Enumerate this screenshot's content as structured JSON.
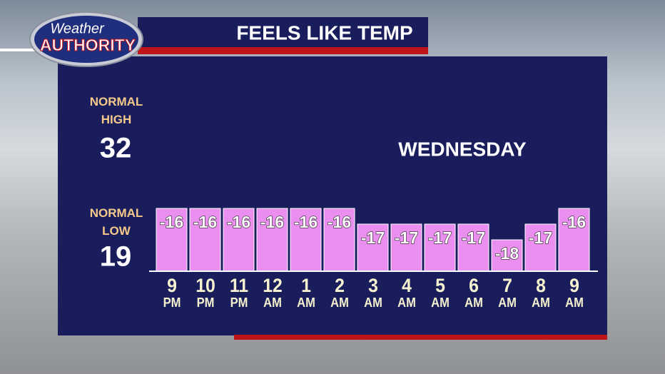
{
  "chart_data": {
    "type": "bar",
    "title": "FEELS LIKE TEMP",
    "logo": {
      "line1": "Weather",
      "line2": "AUTHORITY"
    },
    "normal_high": {
      "label": "NORMAL HIGH",
      "value": 32
    },
    "normal_low": {
      "label": "NORMAL LOW",
      "value": 19
    },
    "day": "WEDNESDAY",
    "categories": [
      "9 PM",
      "10 PM",
      "11 PM",
      "12 AM",
      "1 AM",
      "2 AM",
      "3 AM",
      "4 AM",
      "5 AM",
      "6 AM",
      "7 AM",
      "8 AM",
      "9 AM"
    ],
    "values": [
      -16,
      -16,
      -16,
      -16,
      -16,
      -16,
      -17,
      -17,
      -17,
      -17,
      -18,
      -17,
      -16
    ],
    "color": "#ea8ef0",
    "ylim": [
      -20,
      -12
    ]
  }
}
